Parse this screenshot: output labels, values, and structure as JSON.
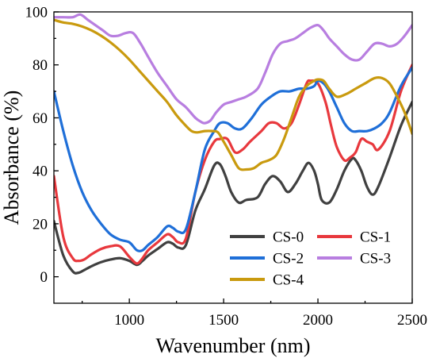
{
  "chart_data": {
    "type": "line",
    "title": "",
    "xlabel": "Wavenumber (nm)",
    "ylabel": "Absorbance (%)",
    "xlim": [
      600,
      2500
    ],
    "ylim": [
      -10,
      100
    ],
    "xticks": [
      1000,
      1500,
      2000,
      2500
    ],
    "yticks": [
      0,
      20,
      40,
      60,
      80,
      100
    ],
    "grid": false,
    "legend": "bottom-right",
    "series": [
      {
        "name": "CS-0",
        "color": "#404040",
        "x": [
          600,
          650,
          700,
          730,
          760,
          800,
          850,
          900,
          950,
          1000,
          1040,
          1070,
          1100,
          1150,
          1200,
          1230,
          1260,
          1300,
          1350,
          1400,
          1450,
          1480,
          1510,
          1540,
          1580,
          1620,
          1680,
          1720,
          1760,
          1800,
          1840,
          1880,
          1920,
          1950,
          1980,
          2000,
          2020,
          2060,
          2100,
          2140,
          2180,
          2200,
          2230,
          2260,
          2290,
          2320,
          2380,
          2440,
          2500
        ],
        "y": [
          21,
          8,
          2,
          1.5,
          2.5,
          4,
          5.5,
          6.5,
          7,
          6,
          4.5,
          6,
          8,
          10.5,
          13,
          12.5,
          11,
          12,
          25,
          33,
          42,
          42.5,
          38,
          32,
          28,
          29,
          30,
          35,
          38,
          36,
          32,
          35,
          40,
          43,
          40,
          35,
          29,
          28,
          33,
          40,
          44.5,
          44,
          40,
          34,
          31,
          34,
          45,
          57,
          66
        ]
      },
      {
        "name": "CS-1",
        "color": "#e8383d",
        "x": [
          600,
          650,
          700,
          730,
          760,
          800,
          850,
          900,
          950,
          1000,
          1040,
          1070,
          1100,
          1150,
          1200,
          1230,
          1260,
          1300,
          1350,
          1400,
          1450,
          1480,
          1520,
          1560,
          1600,
          1640,
          1700,
          1740,
          1780,
          1820,
          1860,
          1900,
          1940,
          1960,
          2000,
          2040,
          2070,
          2100,
          2140,
          2170,
          2200,
          2230,
          2260,
          2290,
          2320,
          2380,
          2440,
          2500
        ],
        "y": [
          38,
          15,
          7,
          6,
          6.5,
          8.5,
          10.5,
          11.5,
          11.5,
          7.5,
          5,
          7,
          10,
          13,
          16,
          15,
          13,
          14.5,
          32,
          44,
          51,
          52,
          52,
          47,
          48,
          51,
          55,
          58,
          58,
          56,
          58,
          65,
          73,
          74,
          73,
          66,
          57,
          49,
          44,
          45,
          47,
          52,
          51,
          50,
          48,
          55,
          70,
          80
        ]
      },
      {
        "name": "CS-2",
        "color": "#1f6fd8",
        "x": [
          600,
          650,
          700,
          750,
          800,
          850,
          900,
          950,
          1000,
          1040,
          1070,
          1100,
          1150,
          1200,
          1230,
          1260,
          1300,
          1350,
          1400,
          1450,
          1480,
          1520,
          1560,
          1600,
          1650,
          1700,
          1750,
          1800,
          1850,
          1900,
          1940,
          1980,
          2000,
          2030,
          2060,
          2100,
          2140,
          2180,
          2220,
          2260,
          2300,
          2340,
          2380,
          2440,
          2500
        ],
        "y": [
          70,
          55,
          42,
          32,
          25,
          20,
          16,
          14,
          13,
          10,
          10,
          12,
          15,
          19,
          18.5,
          17,
          18,
          32,
          48,
          55,
          58,
          58,
          56,
          56,
          60,
          65,
          68,
          70,
          70,
          71,
          71,
          72,
          74,
          73,
          70,
          64,
          58,
          55,
          55,
          55,
          56,
          58,
          62,
          72,
          79
        ]
      },
      {
        "name": "CS-3",
        "color": "#b87ee0",
        "x": [
          600,
          650,
          700,
          740,
          780,
          820,
          860,
          900,
          940,
          980,
          1020,
          1060,
          1100,
          1150,
          1200,
          1250,
          1300,
          1350,
          1380,
          1400,
          1430,
          1460,
          1500,
          1540,
          1580,
          1620,
          1680,
          1720,
          1760,
          1800,
          1840,
          1880,
          1920,
          1960,
          2000,
          2030,
          2060,
          2100,
          2140,
          2180,
          2220,
          2260,
          2300,
          2340,
          2380,
          2420,
          2460,
          2500
        ],
        "y": [
          98,
          98,
          98,
          99,
          97,
          95,
          93,
          91,
          91,
          92,
          92,
          88,
          83,
          77,
          72,
          67,
          64,
          60,
          58.5,
          58,
          59,
          62,
          65,
          66,
          67,
          68,
          71,
          77,
          84,
          88,
          89,
          90,
          92,
          94,
          95,
          93,
          90,
          87,
          84,
          82,
          82,
          85,
          88,
          88,
          87,
          88,
          91,
          95
        ]
      },
      {
        "name": "CS-4",
        "color": "#c99a0e",
        "x": [
          600,
          650,
          700,
          750,
          800,
          850,
          900,
          950,
          1000,
          1050,
          1100,
          1150,
          1200,
          1250,
          1300,
          1330,
          1360,
          1400,
          1440,
          1470,
          1500,
          1540,
          1580,
          1620,
          1660,
          1700,
          1740,
          1780,
          1820,
          1860,
          1900,
          1940,
          1980,
          2000,
          2030,
          2060,
          2100,
          2150,
          2200,
          2250,
          2300,
          2340,
          2380,
          2420,
          2460,
          2500
        ],
        "y": [
          97,
          96,
          95.5,
          94.5,
          93,
          91,
          88.5,
          85.5,
          82,
          78,
          74,
          70,
          66,
          61,
          57,
          55,
          54.5,
          55,
          55,
          54.5,
          51,
          46,
          41,
          40.5,
          41,
          43,
          44,
          46,
          52,
          60,
          68,
          72,
          74,
          74.5,
          74,
          71,
          68,
          69,
          71,
          73,
          75,
          75,
          73,
          68,
          62,
          54
        ]
      }
    ]
  }
}
